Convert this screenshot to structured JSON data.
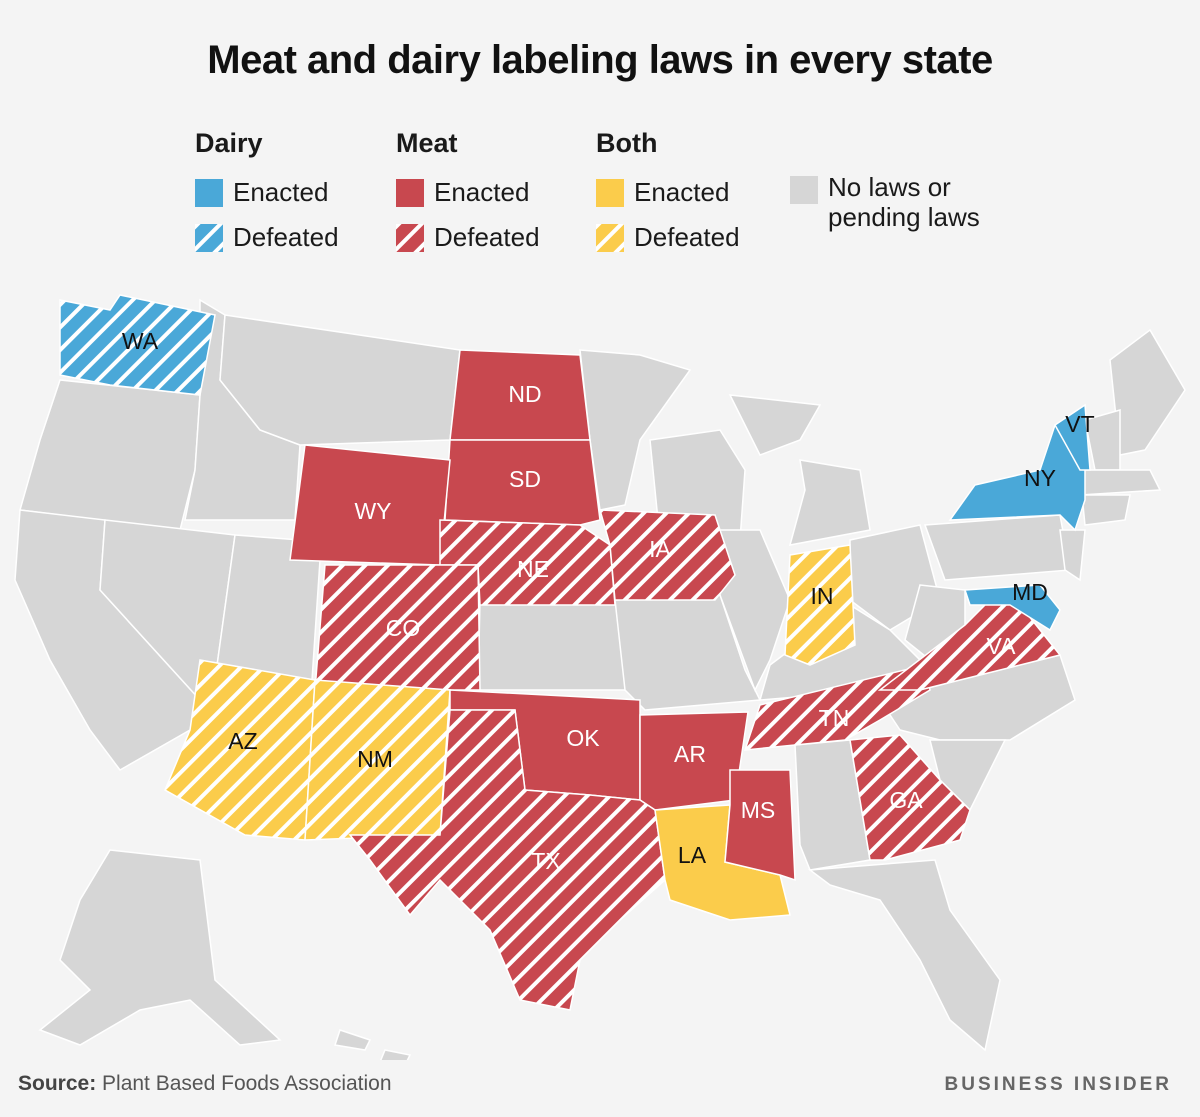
{
  "title": "Meat and dairy labeling laws in every state",
  "legend": {
    "groups": [
      {
        "heading": "Dairy",
        "enacted": "Enacted",
        "defeated": "Defeated",
        "color": "#4aa8d8"
      },
      {
        "heading": "Meat",
        "enacted": "Enacted",
        "defeated": "Defeated",
        "color": "#c8484f"
      },
      {
        "heading": "Both",
        "enacted": "Enacted",
        "defeated": "Defeated",
        "color": "#fbcc4b"
      }
    ],
    "none_label": "No laws or pending laws",
    "none_color": "#d6d6d6"
  },
  "states": [
    {
      "code": "WA",
      "category": "dairy",
      "status": "defeated"
    },
    {
      "code": "ND",
      "category": "meat",
      "status": "enacted"
    },
    {
      "code": "SD",
      "category": "meat",
      "status": "enacted"
    },
    {
      "code": "WY",
      "category": "meat",
      "status": "enacted"
    },
    {
      "code": "NE",
      "category": "meat",
      "status": "defeated"
    },
    {
      "code": "IA",
      "category": "meat",
      "status": "defeated"
    },
    {
      "code": "CO",
      "category": "meat",
      "status": "defeated"
    },
    {
      "code": "AZ",
      "category": "both",
      "status": "defeated"
    },
    {
      "code": "NM",
      "category": "both",
      "status": "defeated"
    },
    {
      "code": "OK",
      "category": "meat",
      "status": "enacted"
    },
    {
      "code": "AR",
      "category": "meat",
      "status": "enacted"
    },
    {
      "code": "TX",
      "category": "meat",
      "status": "defeated"
    },
    {
      "code": "LA",
      "category": "both",
      "status": "enacted"
    },
    {
      "code": "MS",
      "category": "meat",
      "status": "enacted"
    },
    {
      "code": "TN",
      "category": "meat",
      "status": "defeated"
    },
    {
      "code": "GA",
      "category": "meat",
      "status": "defeated"
    },
    {
      "code": "VA",
      "category": "meat",
      "status": "defeated"
    },
    {
      "code": "IN",
      "category": "both",
      "status": "defeated"
    },
    {
      "code": "MD",
      "category": "dairy",
      "status": "enacted"
    },
    {
      "code": "NY",
      "category": "dairy",
      "status": "enacted"
    },
    {
      "code": "VT",
      "category": "dairy",
      "status": "enacted"
    }
  ],
  "source_label": "Source:",
  "source_text": "Plant Based Foods Association",
  "brand": "BUSINESS INSIDER"
}
